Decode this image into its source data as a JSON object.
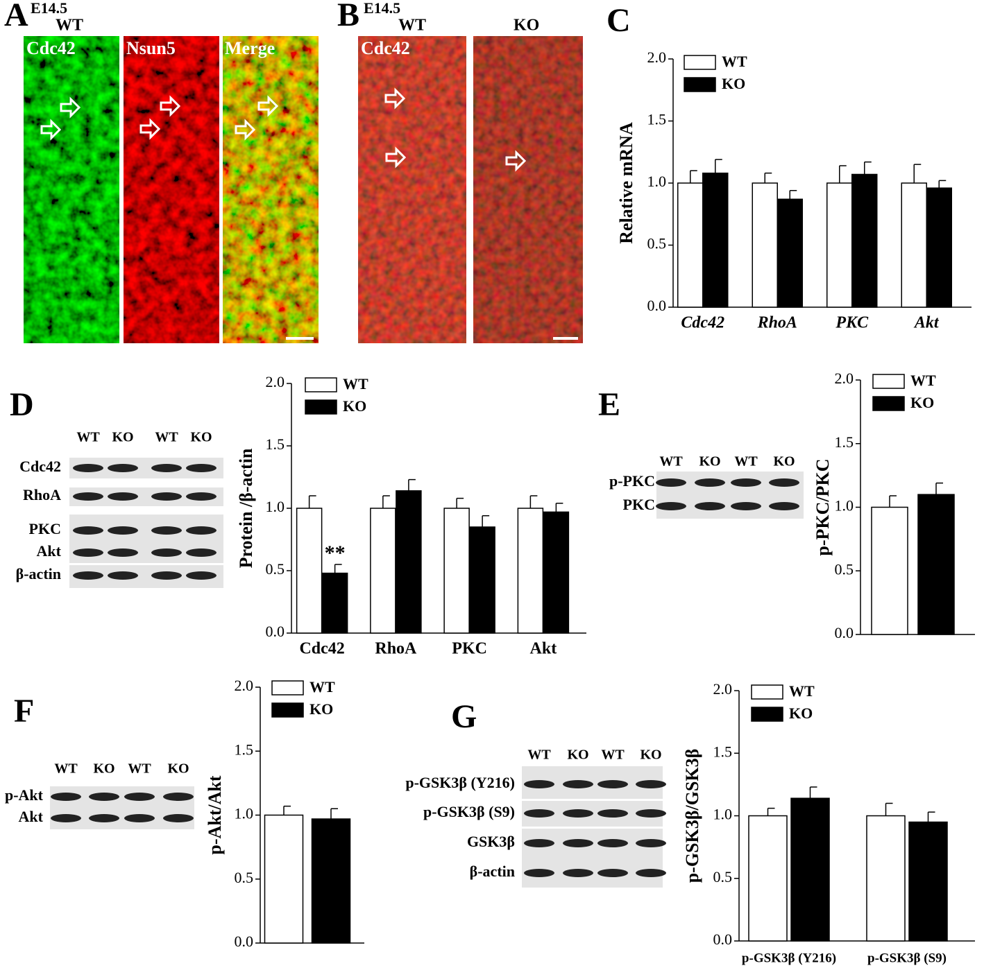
{
  "panels": {
    "A": {
      "letter": "A",
      "stage": "E14.5",
      "genotype": "WT",
      "channels": [
        "Cdc42",
        "Nsun5",
        "Merge"
      ]
    },
    "B": {
      "letter": "B",
      "stage": "E14.5",
      "genotypes": [
        "WT",
        "KO"
      ],
      "channel": "Cdc42"
    },
    "C": {
      "letter": "C"
    },
    "D": {
      "letter": "D",
      "lanes": [
        "WT",
        "KO",
        "WT",
        "KO"
      ],
      "bands": [
        "Cdc42",
        "RhoA",
        "PKC",
        "Akt",
        "β-actin"
      ]
    },
    "E": {
      "letter": "E",
      "lanes": [
        "WT",
        "KO",
        "WT",
        "KO"
      ],
      "bands": [
        "p-PKC",
        "PKC"
      ]
    },
    "F": {
      "letter": "F",
      "lanes": [
        "WT",
        "KO",
        "WT",
        "KO"
      ],
      "bands": [
        "p-Akt",
        "Akt"
      ]
    },
    "G": {
      "letter": "G",
      "lanes": [
        "WT",
        "KO",
        "WT",
        "KO"
      ],
      "bands": [
        "p-GSK3β (Y216)",
        "p-GSK3β (S9)",
        "GSK3β",
        "β-actin"
      ]
    }
  },
  "chart_data": [
    {
      "type": "bar",
      "ylabel": "Relative mRNA",
      "categories": [
        "Cdc42",
        "RhoA",
        "PKC",
        "Akt"
      ],
      "series": [
        {
          "name": "WT",
          "color": "#ffffff",
          "values": [
            1.0,
            1.0,
            1.0,
            1.0
          ],
          "errors": [
            0.1,
            0.08,
            0.14,
            0.15
          ]
        },
        {
          "name": "KO",
          "color": "#000000",
          "values": [
            1.08,
            0.87,
            1.07,
            0.96
          ],
          "errors": [
            0.11,
            0.07,
            0.1,
            0.06
          ]
        }
      ],
      "ylim": [
        0,
        2
      ],
      "yticks": [
        {
          "value": 0,
          "label": "0.0"
        },
        {
          "value": 0.5,
          "label": "0.5"
        },
        {
          "value": 1,
          "label": "1.0"
        },
        {
          "value": 1.5,
          "label": "1.5"
        },
        {
          "value": 2,
          "label": "2.0"
        }
      ]
    },
    {
      "type": "bar",
      "ylabel": "Protein /β-actin",
      "categories": [
        "Cdc42",
        "RhoA",
        "PKC",
        "Akt"
      ],
      "annotation": "**",
      "series": [
        {
          "name": "WT",
          "color": "#ffffff",
          "values": [
            1.0,
            1.0,
            1.0,
            1.0
          ],
          "errors": [
            0.1,
            0.1,
            0.08,
            0.1
          ]
        },
        {
          "name": "KO",
          "color": "#000000",
          "values": [
            0.48,
            1.14,
            0.85,
            0.97
          ],
          "errors": [
            0.07,
            0.09,
            0.09,
            0.07
          ]
        }
      ],
      "ylim": [
        0,
        2
      ],
      "yticks": [
        {
          "value": 0,
          "label": "0.0"
        },
        {
          "value": 0.5,
          "label": "0.5"
        },
        {
          "value": 1,
          "label": "1.0"
        },
        {
          "value": 1.5,
          "label": "1.5"
        },
        {
          "value": 2,
          "label": "2.0"
        }
      ]
    },
    {
      "type": "bar",
      "ylabel": "p-PKC/PKC",
      "series": [
        {
          "name": "WT",
          "color": "#ffffff",
          "values": [
            1.0
          ],
          "errors": [
            0.09
          ]
        },
        {
          "name": "KO",
          "color": "#000000",
          "values": [
            1.1
          ],
          "errors": [
            0.09
          ]
        }
      ],
      "ylim": [
        0,
        2
      ],
      "yticks": [
        {
          "value": 0,
          "label": "0.0"
        },
        {
          "value": 0.5,
          "label": "0.5"
        },
        {
          "value": 1,
          "label": "1.0"
        },
        {
          "value": 1.5,
          "label": "1.5"
        },
        {
          "value": 2,
          "label": "2.0"
        }
      ]
    },
    {
      "type": "bar",
      "ylabel": "p-Akt/Akt",
      "series": [
        {
          "name": "WT",
          "color": "#ffffff",
          "values": [
            1.0
          ],
          "errors": [
            0.07
          ]
        },
        {
          "name": "KO",
          "color": "#000000",
          "values": [
            0.97
          ],
          "errors": [
            0.08
          ]
        }
      ],
      "ylim": [
        0,
        2
      ],
      "yticks": [
        {
          "value": 0,
          "label": "0.0"
        },
        {
          "value": 0.5,
          "label": "0.5"
        },
        {
          "value": 1,
          "label": "1.0"
        },
        {
          "value": 1.5,
          "label": "1.5"
        },
        {
          "value": 2,
          "label": "2.0"
        }
      ]
    },
    {
      "type": "bar",
      "ylabel": "p-GSK3β/GSK3β",
      "categories": [
        "p-GSK3β (Y216)",
        "p-GSK3β (S9)"
      ],
      "series": [
        {
          "name": "WT",
          "color": "#ffffff",
          "values": [
            1.0,
            1.0
          ],
          "errors": [
            0.06,
            0.1
          ]
        },
        {
          "name": "KO",
          "color": "#000000",
          "values": [
            1.14,
            0.95
          ],
          "errors": [
            0.09,
            0.08
          ]
        }
      ],
      "ylim": [
        0,
        2
      ],
      "yticks": [
        {
          "value": 0,
          "label": "0.0"
        },
        {
          "value": 0.5,
          "label": "0.5"
        },
        {
          "value": 1,
          "label": "1.0"
        },
        {
          "value": 1.5,
          "label": "1.5"
        },
        {
          "value": 2,
          "label": "2.0"
        }
      ]
    }
  ]
}
